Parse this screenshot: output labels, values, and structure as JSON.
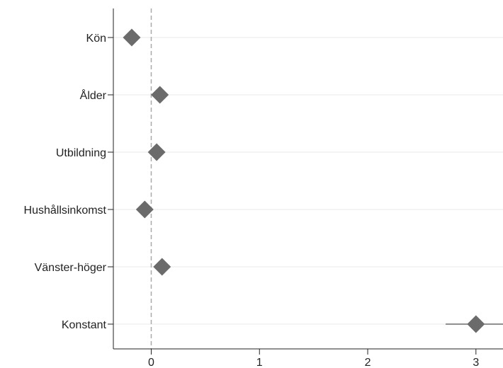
{
  "chart_data": {
    "type": "scatter",
    "title": "",
    "xlabel": "",
    "ylabel": "",
    "categories": [
      "Kön",
      "Ålder",
      "Utbildning",
      "Hushållsinkomst",
      "Vänster-höger",
      "Konstant"
    ],
    "estimates": [
      -0.18,
      0.08,
      0.05,
      -0.06,
      0.1,
      3.0
    ],
    "ci_lower": [
      null,
      null,
      null,
      null,
      null,
      2.72
    ],
    "ci_upper": [
      null,
      null,
      null,
      null,
      null,
      3.28
    ],
    "x_ticks": [
      0,
      1,
      2,
      3
    ],
    "x_tick_labels": [
      "0",
      "1",
      "2",
      "3"
    ],
    "xlim": [
      -0.35,
      3.25
    ],
    "reference_line": 0,
    "grid": "horizontal",
    "legend": "none",
    "marker": "diamond",
    "colors": {
      "marker": "#6b6b6b",
      "ci_line": "#6b6b6b",
      "axis": "#222222",
      "grid": "#eaeaea",
      "reference": "#aaaaaa"
    }
  }
}
